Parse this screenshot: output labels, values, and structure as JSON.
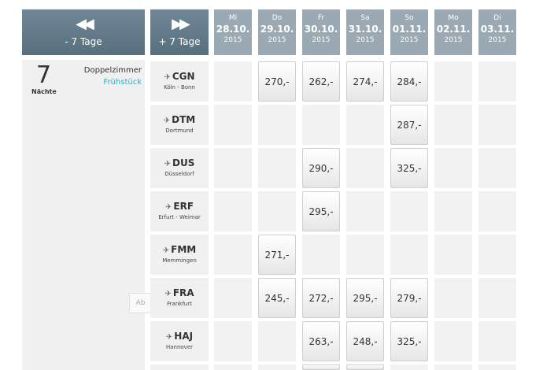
{
  "nav": {
    "prev_label": "- 7 Tage",
    "next_label": "+ 7 Tage",
    "prev_icon": "rewind-icon",
    "next_icon": "fast-forward-icon"
  },
  "days": [
    {
      "name": "Mi",
      "date": "28.10.",
      "year": "2015"
    },
    {
      "name": "Do",
      "date": "29.10.",
      "year": "2015"
    },
    {
      "name": "Fr",
      "date": "30.10.",
      "year": "2015"
    },
    {
      "name": "Sa",
      "date": "31.10.",
      "year": "2015"
    },
    {
      "name": "So",
      "date": "01.11.",
      "year": "2015"
    },
    {
      "name": "Mo",
      "date": "02.11.",
      "year": "2015"
    },
    {
      "name": "Di",
      "date": "03.11.",
      "year": "2015"
    }
  ],
  "info": {
    "nights": "7",
    "nights_label": "Nächte",
    "room": "Doppelzimmer",
    "board": "Frühstück",
    "side_tab": "Ab"
  },
  "airports": [
    {
      "code": "CGN",
      "city": "Köln - Bonn",
      "prices": [
        "",
        "270,-",
        "262,-",
        "274,-",
        "284,-",
        "",
        ""
      ]
    },
    {
      "code": "DTM",
      "city": "Dortmund",
      "prices": [
        "",
        "",
        "",
        "",
        "287,-",
        "",
        ""
      ]
    },
    {
      "code": "DUS",
      "city": "Düsseldorf",
      "prices": [
        "",
        "",
        "290,-",
        "",
        "325,-",
        "",
        ""
      ]
    },
    {
      "code": "ERF",
      "city": "Erfurt - Weimar",
      "prices": [
        "",
        "",
        "295,-",
        "",
        "",
        "",
        ""
      ]
    },
    {
      "code": "FMM",
      "city": "Memmingen",
      "prices": [
        "",
        "271,-",
        "",
        "",
        "",
        "",
        ""
      ]
    },
    {
      "code": "FRA",
      "city": "Frankfurt",
      "prices": [
        "",
        "245,-",
        "272,-",
        "295,-",
        "279,-",
        "",
        ""
      ]
    },
    {
      "code": "HAJ",
      "city": "Hannover",
      "prices": [
        "",
        "",
        "263,-",
        "248,-",
        "325,-",
        "",
        ""
      ]
    }
  ],
  "colors": {
    "header_dark": "#586f7e",
    "header_day": "#9aa9b3",
    "accent": "#2ab0c8",
    "cell_bg": "#f2f2f2"
  }
}
